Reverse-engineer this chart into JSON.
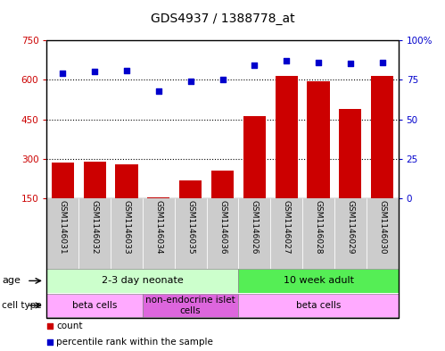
{
  "title": "GDS4937 / 1388778_at",
  "samples": [
    "GSM1146031",
    "GSM1146032",
    "GSM1146033",
    "GSM1146034",
    "GSM1146035",
    "GSM1146036",
    "GSM1146026",
    "GSM1146027",
    "GSM1146028",
    "GSM1146029",
    "GSM1146030"
  ],
  "counts": [
    285,
    290,
    278,
    152,
    218,
    255,
    463,
    615,
    595,
    488,
    615
  ],
  "percentiles": [
    79,
    80.5,
    81,
    68,
    74,
    75,
    84,
    87,
    86,
    85.5,
    86
  ],
  "ylim_left": [
    150,
    750
  ],
  "ylim_right": [
    0,
    100
  ],
  "yticks_left": [
    150,
    300,
    450,
    600,
    750
  ],
  "yticks_right": [
    0,
    25,
    50,
    75,
    100
  ],
  "bar_color": "#cc0000",
  "dot_color": "#0000cc",
  "grid_color": "#000000",
  "age_groups": [
    {
      "label": "2-3 day neonate",
      "start": 0,
      "end": 6,
      "color": "#ccffcc"
    },
    {
      "label": "10 week adult",
      "start": 6,
      "end": 11,
      "color": "#55ee55"
    }
  ],
  "cell_type_groups": [
    {
      "label": "beta cells",
      "start": 0,
      "end": 3,
      "color": "#ffaaff"
    },
    {
      "label": "non-endocrine islet\ncells",
      "start": 3,
      "end": 6,
      "color": "#dd66dd"
    },
    {
      "label": "beta cells",
      "start": 6,
      "end": 11,
      "color": "#ffaaff"
    }
  ],
  "legend_items": [
    {
      "color": "#cc0000",
      "label": "count"
    },
    {
      "color": "#0000cc",
      "label": "percentile rank within the sample"
    }
  ],
  "bg_color": "#ffffff",
  "sample_bg_color": "#cccccc"
}
